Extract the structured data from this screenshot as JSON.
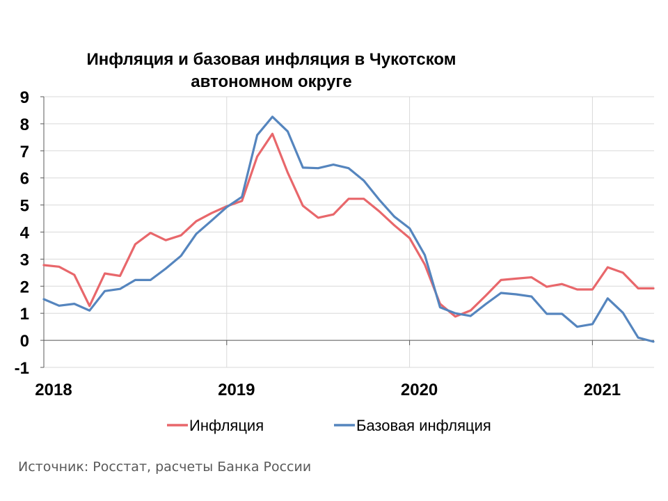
{
  "chart_data": {
    "type": "line",
    "title": "Инфляция и базовая инфляция в Чукотском автономном округе",
    "title_lines": [
      "Инфляция и базовая инфляция в Чукотском",
      "автономном округе"
    ],
    "x_labels": [
      "2018",
      "2019",
      "2020",
      "2021"
    ],
    "y_ticks": [
      "9",
      "8",
      "7",
      "6",
      "5",
      "4",
      "3",
      "2",
      "1",
      "0",
      "-1"
    ],
    "ylim": [
      -1,
      9
    ],
    "x_start": "2018-01",
    "grid": true,
    "legend_position": "bottom",
    "series": [
      {
        "name": "Инфляция",
        "color": "#E8676B",
        "values": [
          2.78,
          2.72,
          2.42,
          1.27,
          2.47,
          2.38,
          3.55,
          3.97,
          3.7,
          3.88,
          4.4,
          4.7,
          4.95,
          5.15,
          6.79,
          7.63,
          6.2,
          4.97,
          4.53,
          4.65,
          5.23,
          5.23,
          4.77,
          4.25,
          3.78,
          2.8,
          1.35,
          0.88,
          1.1,
          1.65,
          2.23,
          2.28,
          2.33,
          1.98,
          2.08,
          1.88,
          1.88,
          2.7,
          2.5,
          1.92,
          1.92
        ]
      },
      {
        "name": "Базовая инфляция",
        "color": "#5585BE",
        "values": [
          1.52,
          1.28,
          1.35,
          1.1,
          1.82,
          1.9,
          2.23,
          2.23,
          2.65,
          3.12,
          3.93,
          4.42,
          4.92,
          5.3,
          7.58,
          8.26,
          7.72,
          6.38,
          6.36,
          6.49,
          6.36,
          5.9,
          5.2,
          4.57,
          4.14,
          3.15,
          1.22,
          1.0,
          0.9,
          1.34,
          1.75,
          1.7,
          1.62,
          0.98,
          0.98,
          0.5,
          0.6,
          1.55,
          1.02,
          0.1,
          -0.05
        ]
      }
    ]
  },
  "source": "Источник: Росстат, расчеты Банка России"
}
